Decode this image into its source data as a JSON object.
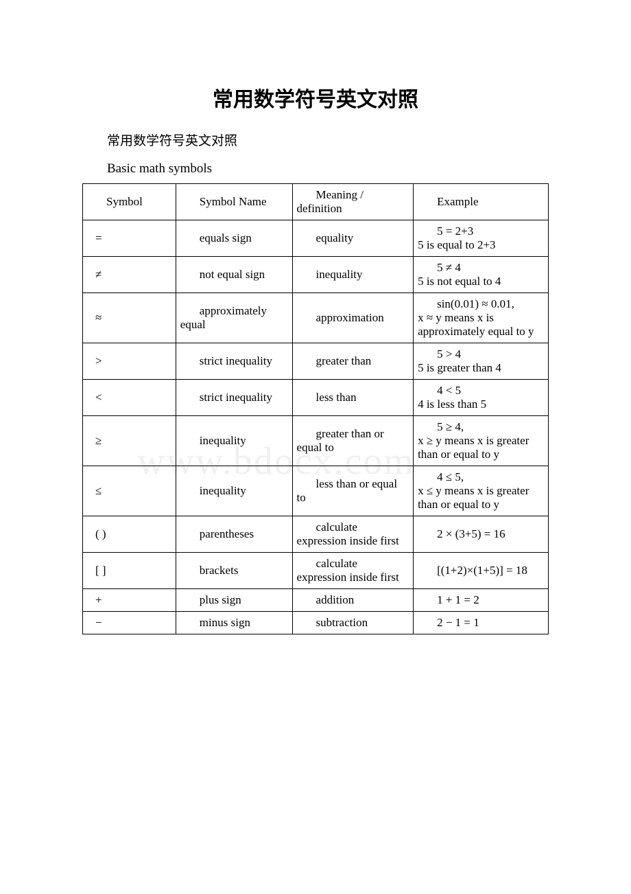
{
  "page": {
    "title": "常用数学符号英文对照",
    "subtitle_cn": "常用数学符号英文对照",
    "subtitle_en": "Basic math symbols",
    "watermark": "www.bdocx.com",
    "colors": {
      "background": "#ffffff",
      "text": "#000000",
      "border": "#000000",
      "watermark": "#f0f0f0"
    },
    "font": {
      "title_size": 30,
      "body_size": 19,
      "table_size": 17
    }
  },
  "table": {
    "headers": {
      "symbol": "Symbol",
      "name": "Symbol Name",
      "meaning": "Meaning / definition",
      "example": "Example"
    },
    "column_widths_pct": [
      20,
      25,
      26,
      29
    ],
    "rows": [
      {
        "symbol": "=",
        "name": "equals sign",
        "meaning": "equality",
        "example": "5 = 2+3\n5 is equal to 2+3"
      },
      {
        "symbol": "≠",
        "name": "not equal sign",
        "meaning": "inequality",
        "example": "5 ≠ 4\n5 is not equal to 4"
      },
      {
        "symbol": "≈",
        "name": "approximately equal",
        "meaning": "approximation",
        "example": "sin(0.01) ≈ 0.01,\nx ≈ y means x is approximately equal to y"
      },
      {
        "symbol": ">",
        "name": "strict inequality",
        "meaning": "greater than",
        "example": "5 > 4\n5 is greater than 4"
      },
      {
        "symbol": "<",
        "name": "strict inequality",
        "meaning": "less than",
        "example": "4 < 5\n4 is less than 5"
      },
      {
        "symbol": "≥",
        "name": "inequality",
        "meaning": "greater than or equal to",
        "example": "5 ≥ 4,\nx ≥ y means x is greater than or equal to y"
      },
      {
        "symbol": "≤",
        "name": "inequality",
        "meaning": "less than or equal to",
        "example": "4 ≤ 5,\nx ≤ y means x is greater than or equal to y"
      },
      {
        "symbol": "( )",
        "name": "parentheses",
        "meaning": "calculate expression inside first",
        "example": "2 × (3+5) = 16"
      },
      {
        "symbol": "[ ]",
        "name": "brackets",
        "meaning": "calculate expression inside first",
        "example": "[(1+2)×(1+5)] = 18"
      },
      {
        "symbol": "+",
        "name": "plus sign",
        "meaning": "addition",
        "example": "1 + 1 = 2"
      },
      {
        "symbol": "−",
        "name": "minus sign",
        "meaning": "subtraction",
        "example": "2 − 1 = 1"
      }
    ]
  }
}
